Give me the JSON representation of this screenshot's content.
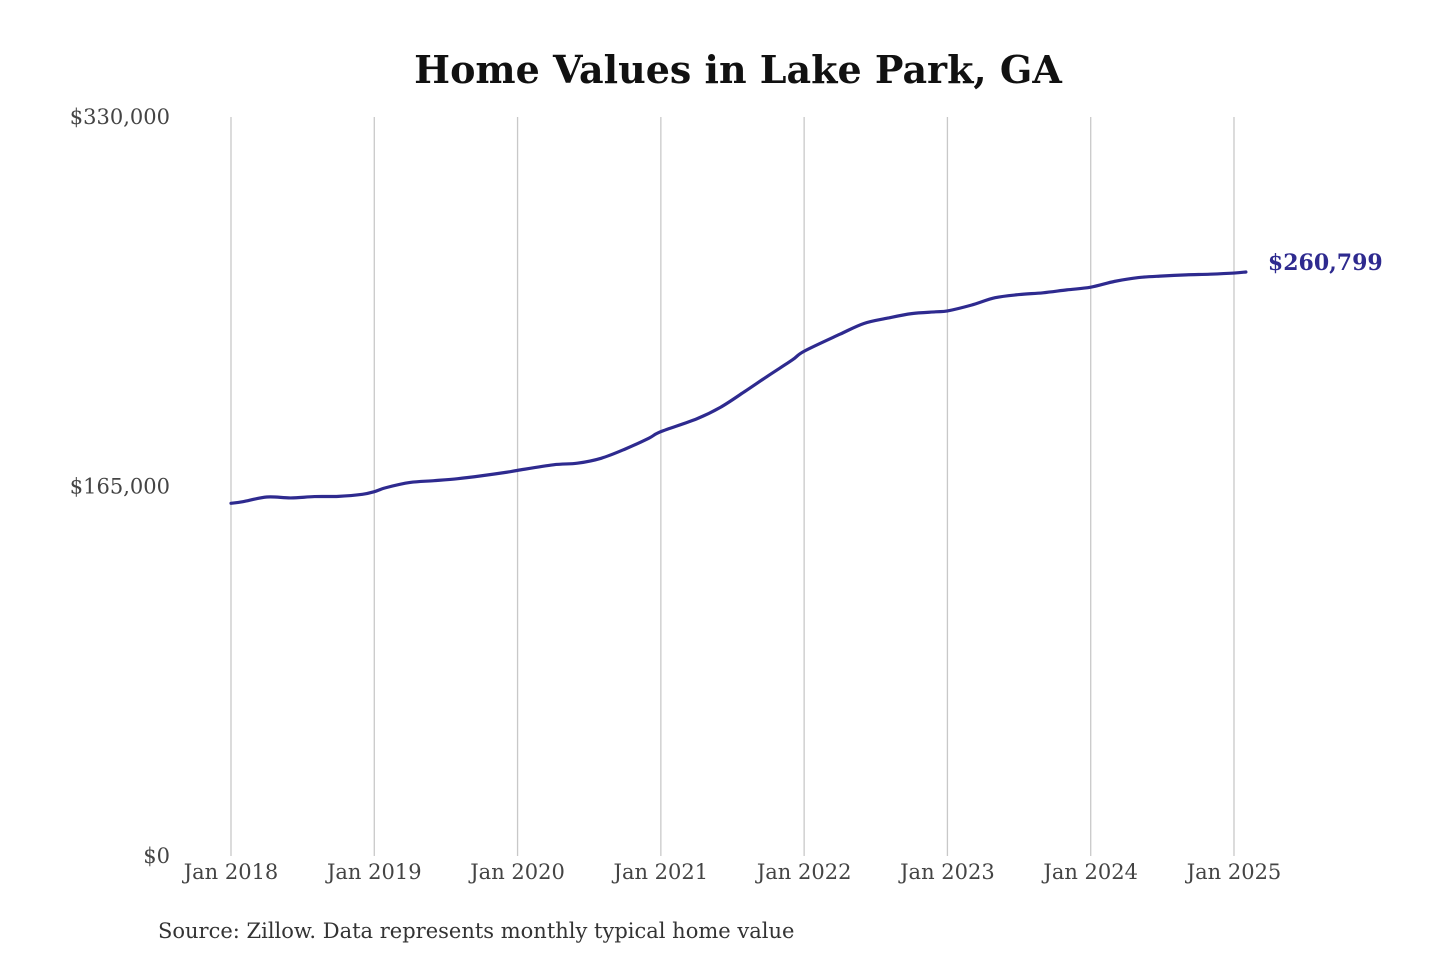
{
  "chart_data": {
    "type": "line",
    "title": "Home Values in Lake Park, GA",
    "source": "Source: Zillow. Data represents monthly typical home value",
    "ylim": [
      0,
      330000
    ],
    "yticks": [
      {
        "value": 0,
        "label": "$0"
      },
      {
        "value": 165000,
        "label": "$165,000"
      },
      {
        "value": 330000,
        "label": "$330,000"
      }
    ],
    "xticks": [
      {
        "value": 2018.0,
        "label": "Jan 2018"
      },
      {
        "value": 2019.0,
        "label": "Jan 2019"
      },
      {
        "value": 2020.0,
        "label": "Jan 2020"
      },
      {
        "value": 2021.0,
        "label": "Jan 2021"
      },
      {
        "value": 2022.0,
        "label": "Jan 2022"
      },
      {
        "value": 2023.0,
        "label": "Jan 2023"
      },
      {
        "value": 2024.0,
        "label": "Jan 2024"
      },
      {
        "value": 2025.0,
        "label": "Jan 2025"
      }
    ],
    "xlim": [
      2018.0,
      2025.0
    ],
    "grid": {
      "vertical": true,
      "horizontal": false
    },
    "series": [
      {
        "color": "#2e2a8f",
        "end_label": "$260,799",
        "x": [
          2018.0,
          2018.083,
          2018.25,
          2018.417,
          2018.583,
          2018.75,
          2018.917,
          2019.0,
          2019.083,
          2019.25,
          2019.417,
          2019.583,
          2019.75,
          2019.917,
          2020.0,
          2020.25,
          2020.417,
          2020.583,
          2020.75,
          2020.917,
          2021.0,
          2021.25,
          2021.417,
          2021.583,
          2021.75,
          2021.917,
          2022.0,
          2022.25,
          2022.417,
          2022.583,
          2022.75,
          2022.917,
          2023.0,
          2023.167,
          2023.333,
          2023.5,
          2023.667,
          2023.833,
          2024.0,
          2024.167,
          2024.333,
          2024.5,
          2024.667,
          2024.833,
          2025.0,
          2025.083
        ],
        "y": [
          157500,
          158200,
          160300,
          159900,
          160500,
          160600,
          161500,
          162700,
          164500,
          166800,
          167600,
          168500,
          169800,
          171300,
          172200,
          174700,
          175400,
          177600,
          181700,
          186600,
          189500,
          195200,
          200400,
          207300,
          214500,
          221500,
          225400,
          233000,
          237800,
          240200,
          242200,
          243000,
          243400,
          246000,
          249300,
          250700,
          251500,
          252800,
          254000,
          256600,
          258300,
          259000,
          259500,
          259800,
          260300,
          260799
        ]
      }
    ]
  }
}
